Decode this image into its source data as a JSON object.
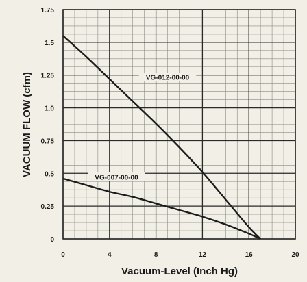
{
  "chart_data": {
    "type": "line",
    "xlabel": "Vacuum-Level (Inch Hg)",
    "ylabel": "VACUUM FLOW (cfm)",
    "xlim": [
      0,
      20
    ],
    "ylim": [
      0,
      1.75
    ],
    "x_ticks": [
      "0",
      "4",
      "8",
      "12",
      "16",
      "20"
    ],
    "y_ticks": [
      "0",
      "0.25",
      "0.5",
      "0.75",
      "1.0",
      "1.25",
      "1.5",
      "1.75"
    ],
    "grid": true,
    "series": [
      {
        "name": "VG-012-00-00",
        "x": [
          0,
          2,
          4,
          6,
          8,
          10,
          12,
          14,
          16,
          17
        ],
        "y": [
          1.55,
          1.39,
          1.22,
          1.05,
          0.88,
          0.7,
          0.51,
          0.3,
          0.09,
          0.0
        ]
      },
      {
        "name": "VG-007-00-00",
        "x": [
          0,
          2,
          4,
          6,
          8,
          10,
          12,
          14,
          16,
          17
        ],
        "y": [
          0.46,
          0.41,
          0.36,
          0.32,
          0.27,
          0.22,
          0.17,
          0.11,
          0.04,
          0.0
        ]
      }
    ],
    "colors": {
      "line": "#1c1c1c",
      "grid_major": "#2a2a2a",
      "grid_minor": "#8a8a84",
      "background": "#f1efe6"
    }
  }
}
